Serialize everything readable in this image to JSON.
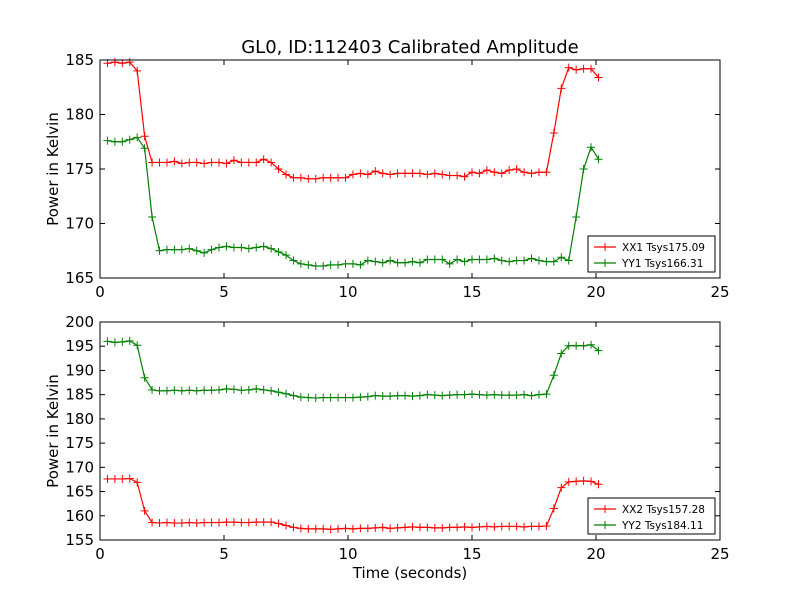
{
  "title": "GL0, ID:112403 Calibrated Amplitude",
  "chart_data": [
    {
      "type": "line",
      "title": "GL0, ID:112403 Calibrated Amplitude",
      "xlabel": "",
      "ylabel": "Power in Kelvin",
      "xlim": [
        0,
        25
      ],
      "ylim": [
        165,
        185
      ],
      "xticks": [
        "0",
        "5",
        "10",
        "15",
        "20",
        "25"
      ],
      "yticks": [
        "165",
        "170",
        "175",
        "180",
        "185"
      ],
      "grid": false,
      "legend_position": "lower-right",
      "x": [
        0.3,
        0.6,
        0.9,
        1.2,
        1.5,
        1.8,
        2.1,
        2.4,
        2.7,
        3.0,
        3.3,
        3.6,
        3.9,
        4.2,
        4.5,
        4.8,
        5.1,
        5.4,
        5.7,
        6.0,
        6.3,
        6.6,
        6.9,
        7.2,
        7.5,
        7.8,
        8.1,
        8.4,
        8.7,
        9.0,
        9.3,
        9.6,
        9.9,
        10.2,
        10.5,
        10.8,
        11.1,
        11.4,
        11.7,
        12.0,
        12.3,
        12.6,
        12.9,
        13.2,
        13.5,
        13.8,
        14.1,
        14.4,
        14.7,
        15.0,
        15.3,
        15.6,
        15.9,
        16.2,
        16.5,
        16.8,
        17.1,
        17.4,
        17.7,
        18.0,
        18.3,
        18.6,
        18.9,
        19.2,
        19.5,
        19.8,
        20.1
      ],
      "series": [
        {
          "name": "XX1 Tsys175.09",
          "color": "#ff0000",
          "values": [
            184.7,
            184.8,
            184.7,
            184.8,
            184.0,
            178.0,
            175.6,
            175.6,
            175.6,
            175.7,
            175.5,
            175.6,
            175.6,
            175.5,
            175.6,
            175.6,
            175.5,
            175.8,
            175.6,
            175.6,
            175.6,
            175.9,
            175.6,
            175.0,
            174.5,
            174.2,
            174.2,
            174.1,
            174.1,
            174.2,
            174.2,
            174.2,
            174.2,
            174.5,
            174.6,
            174.5,
            174.8,
            174.6,
            174.5,
            174.6,
            174.6,
            174.6,
            174.6,
            174.5,
            174.6,
            174.5,
            174.4,
            174.4,
            174.3,
            174.7,
            174.6,
            174.9,
            174.7,
            174.6,
            174.9,
            175.0,
            174.7,
            174.6,
            174.7,
            174.7,
            178.3,
            182.4,
            184.3,
            184.1,
            184.2,
            184.2,
            183.4
          ]
        },
        {
          "name": "YY1 Tsys166.31",
          "color": "#008000",
          "values": [
            177.6,
            177.5,
            177.5,
            177.7,
            177.9,
            176.9,
            170.6,
            167.5,
            167.6,
            167.6,
            167.6,
            167.7,
            167.5,
            167.3,
            167.6,
            167.8,
            167.9,
            167.8,
            167.8,
            167.7,
            167.8,
            167.9,
            167.7,
            167.4,
            167.1,
            166.6,
            166.3,
            166.2,
            166.1,
            166.1,
            166.2,
            166.2,
            166.3,
            166.3,
            166.2,
            166.6,
            166.5,
            166.4,
            166.6,
            166.4,
            166.4,
            166.5,
            166.4,
            166.7,
            166.7,
            166.7,
            166.3,
            166.7,
            166.5,
            166.7,
            166.7,
            166.7,
            166.8,
            166.6,
            166.5,
            166.6,
            166.6,
            166.8,
            166.6,
            166.5,
            166.5,
            166.9,
            166.6,
            170.6,
            175.0,
            177.0,
            175.9
          ]
        }
      ]
    },
    {
      "type": "line",
      "title": "",
      "xlabel": "Time (seconds)",
      "ylabel": "Power in Kelvin",
      "xlim": [
        0,
        25
      ],
      "ylim": [
        155,
        200
      ],
      "xticks": [
        "0",
        "5",
        "10",
        "15",
        "20",
        "25"
      ],
      "yticks": [
        "155",
        "160",
        "165",
        "170",
        "175",
        "180",
        "185",
        "190",
        "195",
        "200"
      ],
      "grid": false,
      "legend_position": "lower-right",
      "x": [
        0.3,
        0.6,
        0.9,
        1.2,
        1.5,
        1.8,
        2.1,
        2.4,
        2.7,
        3.0,
        3.3,
        3.6,
        3.9,
        4.2,
        4.5,
        4.8,
        5.1,
        5.4,
        5.7,
        6.0,
        6.3,
        6.6,
        6.9,
        7.2,
        7.5,
        7.8,
        8.1,
        8.4,
        8.7,
        9.0,
        9.3,
        9.6,
        9.9,
        10.2,
        10.5,
        10.8,
        11.1,
        11.4,
        11.7,
        12.0,
        12.3,
        12.6,
        12.9,
        13.2,
        13.5,
        13.8,
        14.1,
        14.4,
        14.7,
        15.0,
        15.3,
        15.6,
        15.9,
        16.2,
        16.5,
        16.8,
        17.1,
        17.4,
        17.7,
        18.0,
        18.3,
        18.6,
        18.9,
        19.2,
        19.5,
        19.8,
        20.1
      ],
      "series": [
        {
          "name": "XX2 Tsys157.28",
          "color": "#ff0000",
          "values": [
            167.6,
            167.6,
            167.6,
            167.7,
            166.9,
            161.0,
            158.6,
            158.5,
            158.6,
            158.5,
            158.5,
            158.6,
            158.5,
            158.6,
            158.6,
            158.6,
            158.7,
            158.7,
            158.6,
            158.6,
            158.7,
            158.7,
            158.7,
            158.4,
            158.0,
            157.6,
            157.4,
            157.3,
            157.3,
            157.3,
            157.2,
            157.3,
            157.4,
            157.3,
            157.4,
            157.4,
            157.5,
            157.6,
            157.4,
            157.5,
            157.6,
            157.7,
            157.6,
            157.6,
            157.5,
            157.5,
            157.6,
            157.6,
            157.7,
            157.6,
            157.7,
            157.8,
            157.7,
            157.8,
            157.8,
            157.8,
            157.7,
            157.8,
            157.8,
            157.9,
            161.5,
            165.8,
            167.0,
            167.1,
            167.2,
            167.1,
            166.5
          ]
        },
        {
          "name": "YY2 Tsys184.11",
          "color": "#008000",
          "values": [
            196.0,
            195.8,
            195.9,
            196.1,
            195.2,
            188.5,
            186.0,
            185.8,
            185.8,
            185.9,
            185.8,
            185.9,
            185.8,
            185.9,
            185.9,
            186.0,
            186.2,
            186.1,
            185.9,
            186.0,
            186.2,
            186.0,
            185.8,
            185.5,
            185.2,
            184.8,
            184.5,
            184.4,
            184.3,
            184.4,
            184.4,
            184.4,
            184.4,
            184.4,
            184.5,
            184.6,
            184.8,
            184.7,
            184.7,
            184.8,
            184.8,
            184.7,
            184.8,
            185.0,
            184.9,
            184.8,
            184.9,
            185.0,
            185.0,
            185.1,
            185.0,
            184.9,
            185.0,
            184.9,
            184.9,
            184.9,
            185.0,
            184.8,
            185.0,
            185.1,
            189.0,
            193.5,
            195.1,
            195.1,
            195.1,
            195.3,
            194.1
          ]
        }
      ]
    }
  ]
}
